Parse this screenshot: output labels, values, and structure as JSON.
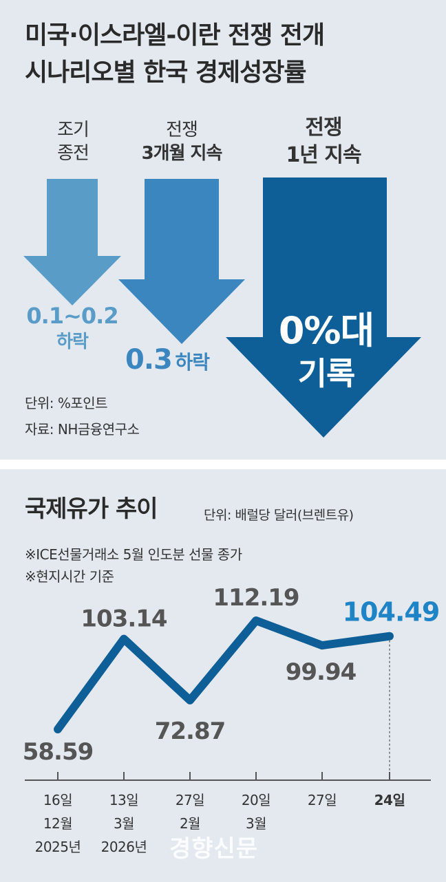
{
  "title": {
    "line1": "미국·이스라엘-이란 전쟁 전개",
    "line2": "시나리오별 한국 경제성장률"
  },
  "scenarios": [
    {
      "label_line1": "조기",
      "label_line2": "종전",
      "value_line1": "0.1~0.2",
      "value_line2": "하락",
      "color": "#5a9cc8"
    },
    {
      "label_line1": "전쟁",
      "label_line2": "3개월 지속",
      "value_line1": "0.3",
      "value_line2": "하락",
      "color": "#3b86bf"
    },
    {
      "label_line1": "전쟁",
      "label_line2": "1년 지속",
      "value_line1": "0%대",
      "value_line2": "기록",
      "color": "#0e5f98"
    }
  ],
  "notes": {
    "unit": "단위: %포인트",
    "source": "자료: NH금융연구소"
  },
  "oil": {
    "title": "국제유가 추이",
    "unit": "단위: 배럴당 달러(브렌트유)",
    "note1": "※ICE선물거래소 5월 인도분 선물 종가",
    "note2": "※현지시간 기준"
  },
  "chart_data": {
    "type": "line",
    "x": [
      "16일 12월 2025년",
      "13일 3월 2026년",
      "27일 2월",
      "20일 3월",
      "27일",
      "24일"
    ],
    "x_lines": [
      [
        "16일",
        "12월",
        "2025년"
      ],
      [
        "13일",
        "3월",
        "2026년"
      ],
      [
        "27일",
        "2월"
      ],
      [
        "20일",
        "3월"
      ],
      [
        "27일"
      ],
      [
        "24일"
      ]
    ],
    "values": [
      58.59,
      103.14,
      72.87,
      112.19,
      99.94,
      104.49
    ],
    "value_labels": [
      "58.59",
      "103.14",
      "72.87",
      "112.19",
      "99.94",
      "104.49"
    ],
    "colors": {
      "line": "#0e5f98",
      "label": "#555555",
      "highlight": "#1f84c6"
    }
  },
  "watermark": "경향신문"
}
